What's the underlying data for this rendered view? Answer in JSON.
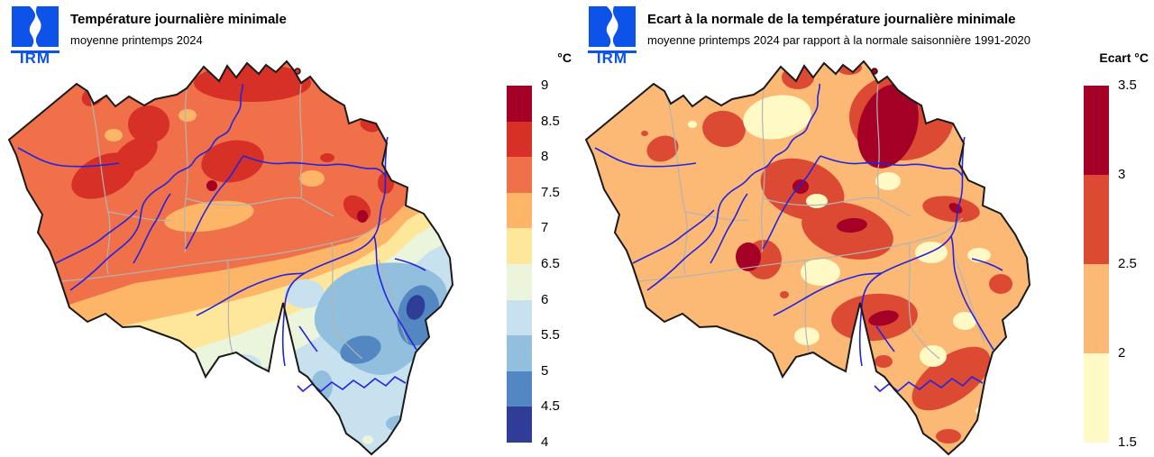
{
  "logo": {
    "text": "IRM",
    "color": "#0D53E9"
  },
  "map": {
    "region": "Belgique",
    "border_color": "#1A1A1A",
    "province_color": "#B3B3B3",
    "river_color": "#2323E0"
  },
  "panels": [
    {
      "title": "Température journalière minimale",
      "subtitle": "moyenne printemps 2024",
      "legend_title": "°C",
      "legend": {
        "ticks": [
          "9",
          "8.5",
          "8",
          "7.5",
          "7",
          "6.5",
          "6",
          "5.5",
          "5",
          "4.5",
          "4"
        ],
        "colors": [
          "#A50026",
          "#D73027",
          "#F0704A",
          "#FDB567",
          "#FEE79B",
          "#EAF5DC",
          "#C7E1EF",
          "#92BFDE",
          "#5287C1",
          "#2F3D96"
        ]
      }
    },
    {
      "title": "Ecart à la normale de la température journalière minimale",
      "subtitle": "moyenne printemps 2024 par rapport à la normale saisonnière 1991-2020",
      "legend_title": "Ecart °C",
      "legend": {
        "ticks": [
          "3.5",
          "3",
          "2.5",
          "2",
          "1.5"
        ],
        "colors": [
          "#A50026",
          "#DC4A33",
          "#FBB975",
          "#FFF9C6"
        ]
      }
    }
  ],
  "chart_data": [
    {
      "type": "map",
      "title": "Température journalière minimale",
      "subtitle": "moyenne printemps 2024",
      "region": "Belgique",
      "unit": "°C",
      "legend_bins": [
        [
          4,
          4.5
        ],
        [
          4.5,
          5
        ],
        [
          5,
          5.5
        ],
        [
          5.5,
          6
        ],
        [
          6,
          6.5
        ],
        [
          6.5,
          7
        ],
        [
          7,
          7.5
        ],
        [
          7.5,
          8
        ],
        [
          8,
          8.5
        ],
        [
          8.5,
          9
        ]
      ],
      "pattern": "warm 7.5-8.5 °C over Flanders and centre, maxima >8.5 °C near Brussels and Liège, cooling southeast to 4-4.5 °C in the Hautes Fagnes / Ardennes"
    },
    {
      "type": "map",
      "title": "Ecart à la normale de la température journalière minimale",
      "subtitle": "moyenne printemps 2024 par rapport à la normale saisonnière 1991-2020",
      "region": "Belgique",
      "unit": "°C",
      "legend_bins": [
        [
          1.5,
          2
        ],
        [
          2,
          2.5
        ],
        [
          2.5,
          3
        ],
        [
          3,
          3.5
        ]
      ],
      "pattern": "anomaly mostly +2 to +2.5 °C, patches +2.5 to +3 °C, maxima +3 to +3.5 °C in Limburg and local spots, minima +1.5 to +2 °C scattered"
    }
  ]
}
